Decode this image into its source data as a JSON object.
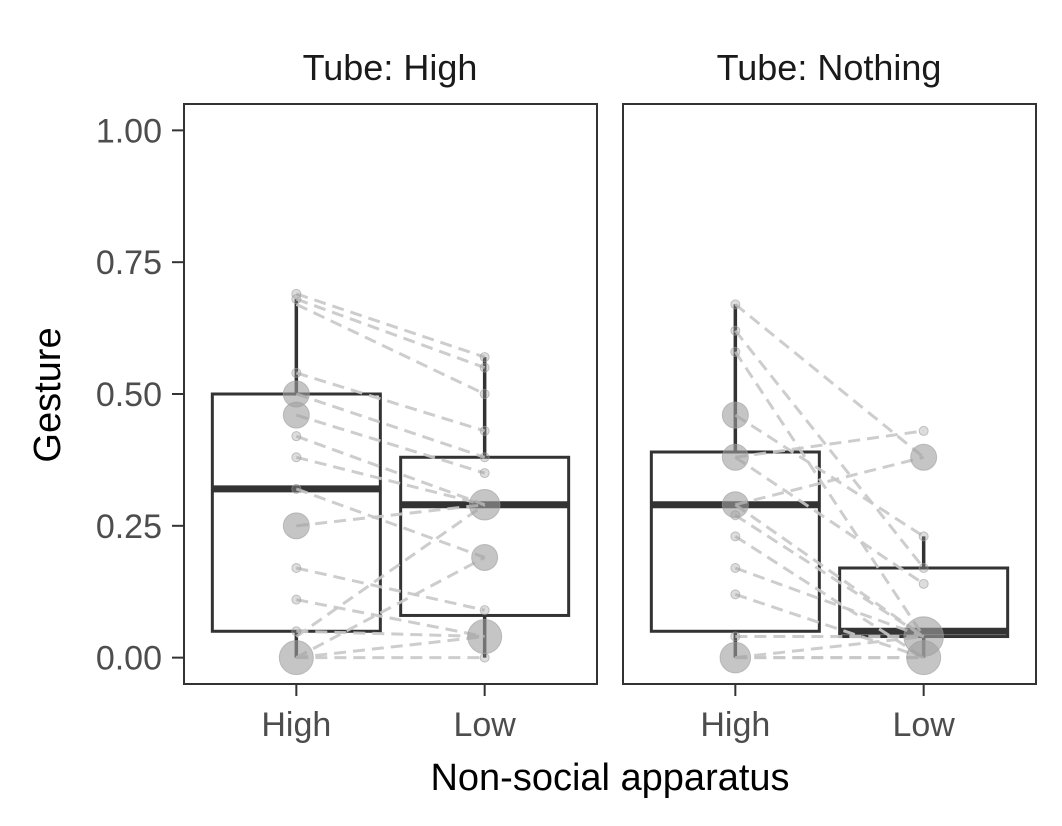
{
  "chart_data": {
    "type": "box",
    "xlabel": "Non-social apparatus",
    "ylabel": "Gesture",
    "ylim": [
      -0.05,
      1.05
    ],
    "yticks": [
      "0.00",
      "0.25",
      "0.50",
      "0.75",
      "1.00"
    ],
    "ytick_values": [
      0,
      0.25,
      0.5,
      0.75,
      1.0
    ],
    "categories": [
      "High",
      "Low"
    ],
    "grid": false,
    "colors": {
      "box": "#333333",
      "points": "#9e9e9e",
      "lines": "#c8c8c8",
      "frame": "#333333"
    },
    "panels": [
      {
        "title": "Tube: High",
        "boxes": [
          {
            "category": "High",
            "min": 0,
            "q1": 0.05,
            "median": 0.32,
            "q3": 0.5,
            "max": 0.68
          },
          {
            "category": "Low",
            "min": 0,
            "q1": 0.08,
            "median": 0.29,
            "q3": 0.38,
            "max": 0.57
          }
        ],
        "points": [
          {
            "category": "High",
            "y": 0.69,
            "n": 1
          },
          {
            "category": "High",
            "y": 0.68,
            "n": 1
          },
          {
            "category": "High",
            "y": 0.54,
            "n": 1
          },
          {
            "category": "High",
            "y": 0.5,
            "n": 2
          },
          {
            "category": "High",
            "y": 0.46,
            "n": 2
          },
          {
            "category": "High",
            "y": 0.42,
            "n": 1
          },
          {
            "category": "High",
            "y": 0.38,
            "n": 1
          },
          {
            "category": "High",
            "y": 0.32,
            "n": 1
          },
          {
            "category": "High",
            "y": 0.25,
            "n": 2
          },
          {
            "category": "High",
            "y": 0.17,
            "n": 1
          },
          {
            "category": "High",
            "y": 0.11,
            "n": 1
          },
          {
            "category": "High",
            "y": 0.05,
            "n": 1
          },
          {
            "category": "High",
            "y": 0.0,
            "n": 4
          },
          {
            "category": "Low",
            "y": 0.57,
            "n": 1
          },
          {
            "category": "Low",
            "y": 0.55,
            "n": 1
          },
          {
            "category": "Low",
            "y": 0.5,
            "n": 1
          },
          {
            "category": "Low",
            "y": 0.43,
            "n": 1
          },
          {
            "category": "Low",
            "y": 0.38,
            "n": 1
          },
          {
            "category": "Low",
            "y": 0.35,
            "n": 1
          },
          {
            "category": "Low",
            "y": 0.29,
            "n": 3
          },
          {
            "category": "Low",
            "y": 0.19,
            "n": 2
          },
          {
            "category": "Low",
            "y": 0.09,
            "n": 1
          },
          {
            "category": "Low",
            "y": 0.04,
            "n": 4
          },
          {
            "category": "Low",
            "y": 0.0,
            "n": 1
          }
        ],
        "pairs": [
          [
            0.69,
            0.57
          ],
          [
            0.68,
            0.55
          ],
          [
            0.67,
            0.5
          ],
          [
            0.54,
            0.43
          ],
          [
            0.5,
            0.38
          ],
          [
            0.46,
            0.35
          ],
          [
            0.42,
            0.29
          ],
          [
            0.38,
            0.29
          ],
          [
            0.32,
            0.19
          ],
          [
            0.25,
            0.29
          ],
          [
            0.17,
            0.09
          ],
          [
            0.11,
            0.04
          ],
          [
            0.05,
            0.04
          ],
          [
            0.0,
            0.04
          ],
          [
            0.0,
            0.0
          ],
          [
            0.0,
            0.19
          ],
          [
            0.04,
            0.29
          ]
        ]
      },
      {
        "title": "Tube: Nothing",
        "boxes": [
          {
            "category": "High",
            "min": 0,
            "q1": 0.05,
            "median": 0.29,
            "q3": 0.39,
            "max": 0.67
          },
          {
            "category": "Low",
            "min": 0,
            "q1": 0.04,
            "median": 0.05,
            "q3": 0.17,
            "max": 0.23
          }
        ],
        "points": [
          {
            "category": "High",
            "y": 0.67,
            "n": 1
          },
          {
            "category": "High",
            "y": 0.62,
            "n": 1
          },
          {
            "category": "High",
            "y": 0.58,
            "n": 1
          },
          {
            "category": "High",
            "y": 0.46,
            "n": 2
          },
          {
            "category": "High",
            "y": 0.38,
            "n": 2
          },
          {
            "category": "High",
            "y": 0.29,
            "n": 2
          },
          {
            "category": "High",
            "y": 0.27,
            "n": 1
          },
          {
            "category": "High",
            "y": 0.23,
            "n": 1
          },
          {
            "category": "High",
            "y": 0.17,
            "n": 1
          },
          {
            "category": "High",
            "y": 0.12,
            "n": 1
          },
          {
            "category": "High",
            "y": 0.04,
            "n": 1
          },
          {
            "category": "High",
            "y": 0.0,
            "n": 3
          },
          {
            "category": "Low",
            "y": 0.43,
            "n": 1
          },
          {
            "category": "Low",
            "y": 0.38,
            "n": 2
          },
          {
            "category": "Low",
            "y": 0.23,
            "n": 1
          },
          {
            "category": "Low",
            "y": 0.17,
            "n": 1
          },
          {
            "category": "Low",
            "y": 0.14,
            "n": 1
          },
          {
            "category": "Low",
            "y": 0.04,
            "n": 6
          },
          {
            "category": "Low",
            "y": 0.0,
            "n": 4
          }
        ],
        "pairs": [
          [
            0.67,
            0.38
          ],
          [
            0.62,
            0.17
          ],
          [
            0.58,
            0.04
          ],
          [
            0.46,
            0.23
          ],
          [
            0.38,
            0.43
          ],
          [
            0.38,
            0.14
          ],
          [
            0.29,
            0.38
          ],
          [
            0.29,
            0.04
          ],
          [
            0.27,
            0.04
          ],
          [
            0.23,
            0.0
          ],
          [
            0.17,
            0.04
          ],
          [
            0.12,
            0.0
          ],
          [
            0.04,
            0.04
          ],
          [
            0.0,
            0.0
          ],
          [
            0.0,
            0.04
          ],
          [
            0.0,
            0.0
          ]
        ]
      }
    ]
  }
}
